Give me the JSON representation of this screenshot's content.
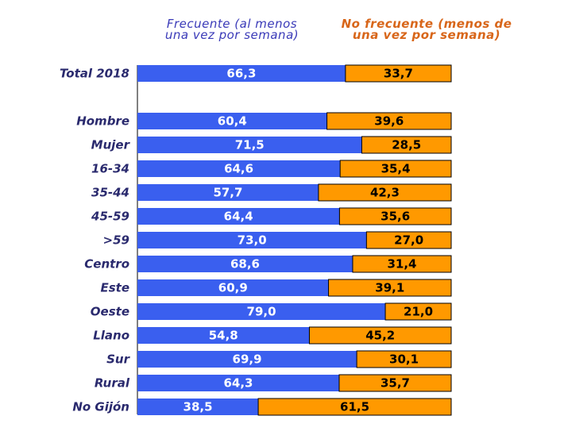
{
  "chart_data": {
    "type": "bar",
    "stacked": true,
    "orientation": "horizontal",
    "title": "",
    "xlabel": "",
    "ylabel": "",
    "xlim": [
      0,
      100
    ],
    "grid": false,
    "legend_position": "top",
    "categories": [
      "Total 2018",
      "",
      "Hombre",
      "Mujer",
      "16-34",
      "35-44",
      "45-59",
      ">59",
      "Centro",
      "Este",
      "Oeste",
      "Llano",
      "Sur",
      "Rural",
      "No Gijón"
    ],
    "series": [
      {
        "name": "Frecuente (al menos una vez por semana)",
        "legend_line1": "Frecuente (al menos",
        "legend_line2": "una vez por semana)",
        "color": "#3a5fef",
        "label_color": "#ffffff",
        "values": [
          66.3,
          null,
          60.4,
          71.5,
          64.6,
          57.7,
          64.4,
          73.0,
          68.6,
          60.9,
          79.0,
          54.8,
          69.9,
          64.3,
          38.5
        ],
        "labels": [
          "66,3",
          "",
          "60,4",
          "71,5",
          "64,6",
          "57,7",
          "64,4",
          "73,0",
          "68,6",
          "60,9",
          "79,0",
          "54,8",
          "69,9",
          "64,3",
          "38,5"
        ]
      },
      {
        "name": "No frecuente (menos de una vez por semana)",
        "legend_line1": "No frecuente (menos de",
        "legend_line2": "una vez por semana)",
        "color": "#ff9900",
        "label_color": "#000000",
        "values": [
          33.7,
          null,
          39.6,
          28.5,
          35.4,
          42.3,
          35.6,
          27.0,
          31.4,
          39.1,
          21.0,
          45.2,
          30.1,
          35.7,
          61.5
        ],
        "labels": [
          "33,7",
          "",
          "39,6",
          "28,5",
          "35,4",
          "42,3",
          "35,6",
          "27,0",
          "31,4",
          "39,1",
          "21,0",
          "45,2",
          "30,1",
          "35,7",
          "61,5"
        ]
      }
    ],
    "legend_colors": {
      "frecuente": "#3a3ab8",
      "no_frecuente": "#d8661a"
    },
    "category_label_color": "#2a2a6e"
  }
}
